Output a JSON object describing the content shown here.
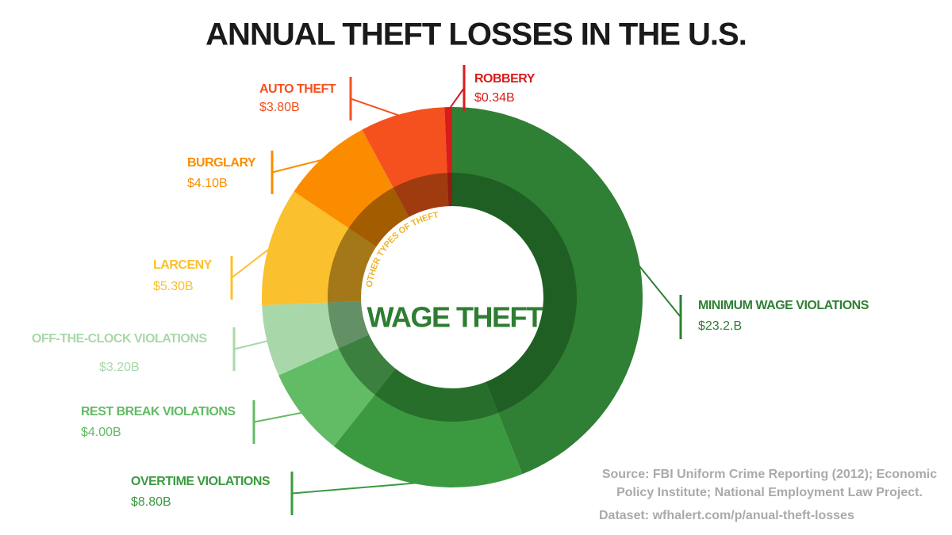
{
  "chart_data": {
    "type": "donut",
    "title": "ANNUAL THEFT LOSSES IN THE U.S.",
    "categories": [
      "MINIMUM WAGE VIOLATIONS",
      "OVERTIME VIOLATIONS",
      "REST BREAK VIOLATIONS",
      "OFF-THE-CLOCK VIOLATIONS",
      "LARCENY",
      "BURGLARY",
      "AUTO THEFT",
      "ROBBERY"
    ],
    "values": [
      23.2,
      8.8,
      4.0,
      3.2,
      5.3,
      4.1,
      3.8,
      0.34
    ],
    "value_labels": [
      "$23.2.B",
      "$8.80B",
      "$4.00B",
      "$3.20B",
      "$5.30B",
      "$4.10B",
      "$3.80B",
      "$0.34B"
    ],
    "colors": [
      "#2f7f34",
      "#3b9a40",
      "#62bb65",
      "#a8d8a9",
      "#fbc02d",
      "#fb8c00",
      "#f4511e",
      "#d81b1b"
    ],
    "groups": [
      {
        "name": "WAGE THEFT",
        "color": "#0f3a12",
        "label_color": "#2e7d32",
        "categories": [
          "MINIMUM WAGE VIOLATIONS",
          "OVERTIME VIOLATIONS",
          "REST BREAK VIOLATIONS",
          "OFF-THE-CLOCK VIOLATIONS"
        ]
      },
      {
        "name": "OTHER TYPES OF THEFT",
        "color": "#3a2200",
        "label_color": "#f0b429",
        "categories": [
          "LARCENY",
          "BURGLARY",
          "AUTO THEFT",
          "ROBBERY"
        ]
      }
    ],
    "source": [
      "Source: FBI Uniform Crime Reporting (2012); Economic",
      "Policy Institute; National Employment Law Project."
    ],
    "dataset": "Dataset: wfhalert.com/p/anual-theft-losses"
  }
}
